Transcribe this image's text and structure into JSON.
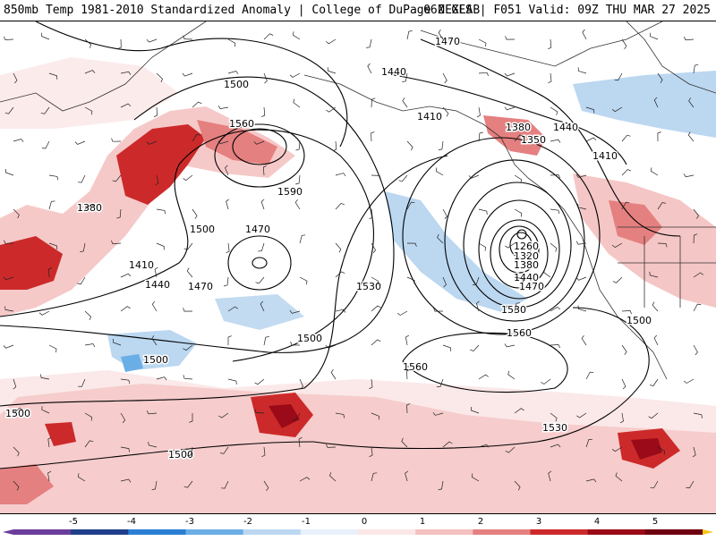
{
  "header": {
    "title_left": "850mb Temp 1981-2010 Standardized Anomaly | College of DuPage NEXLAB",
    "title_right": "06Z GFS | F051 Valid: 09Z THU MAR 27 2025"
  },
  "map": {
    "contour_labels": [
      "1470",
      "1440",
      "1500",
      "1410",
      "1380",
      "1350",
      "1560",
      "1590",
      "1440",
      "1410",
      "1380",
      "1500",
      "1470",
      "1410",
      "1440",
      "1470",
      "1530",
      "1260",
      "1320",
      "1380",
      "1440",
      "1470",
      "1530",
      "1500",
      "1500",
      "1560",
      "1560",
      "1500",
      "1500",
      "1500",
      "1530"
    ]
  },
  "legend": {
    "ticks": [
      "-5",
      "-4",
      "-3",
      "-2",
      "-1",
      "0",
      "1",
      "2",
      "3",
      "4",
      "5"
    ],
    "colors": {
      "m5": "#6a3d9a",
      "m4": "#1f3f8a",
      "m3": "#2a7fd4",
      "m2": "#6aaee6",
      "m1": "#bcd7f0",
      "m0": "#e8f1fa",
      "p0": "#fbe6e6",
      "p1": "#f4c0c0",
      "p2": "#e58080",
      "p3": "#cc2a2a",
      "p4": "#9a0a18",
      "p5": "#6e0010",
      "p6": "#f5c518"
    }
  }
}
